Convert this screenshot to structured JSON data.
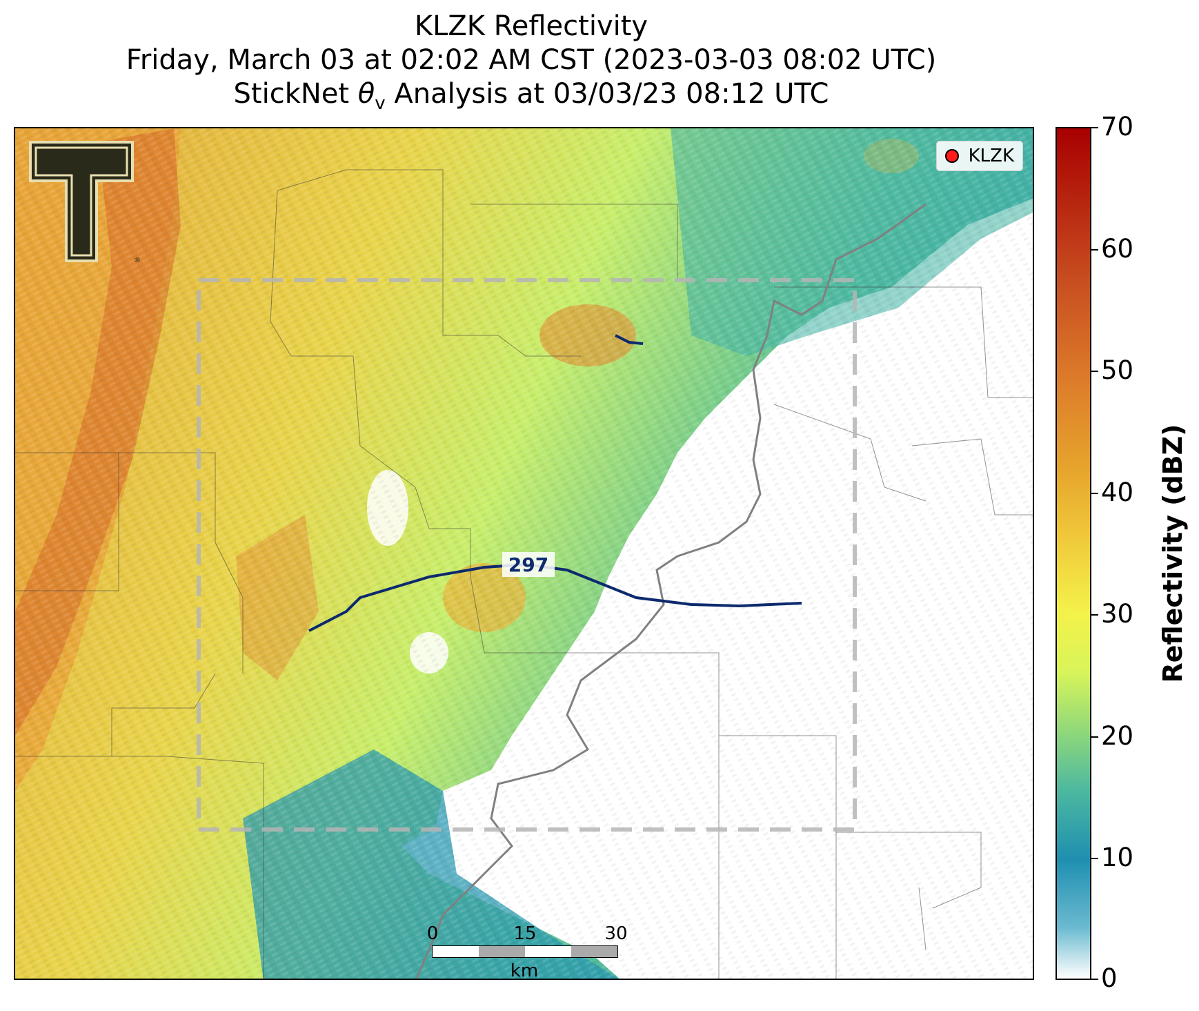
{
  "title": {
    "line1": "KLZK Reflectivity",
    "line2": "Friday, March 03 at 02:02 AM CST (2023-03-03 08:02 UTC)",
    "line3_prefix": "StickNet ",
    "line3_symbol": "θ",
    "line3_subscript": "v",
    "line3_suffix": " Analysis at 03/03/23 08:12 UTC"
  },
  "legend": {
    "label": "KLZK",
    "marker_color": "#ff1a1a"
  },
  "contour": {
    "label": "297",
    "color": "#0d2a6e"
  },
  "colorbar": {
    "title": "Reflectivity (dBZ)",
    "ticks": [
      "70",
      "60",
      "50",
      "40",
      "30",
      "20",
      "10",
      "0"
    ],
    "colors": [
      "#ffffff",
      "#1e8fb0",
      "#4cb8a0",
      "#c6f06e",
      "#f4f24a",
      "#e6b43c",
      "#d9682a",
      "#a80000"
    ]
  },
  "scalebar": {
    "labels": [
      "0",
      "15",
      "30"
    ],
    "unit": "km"
  },
  "logo": {
    "name": "Texas Tech Double T",
    "color": "#2a2a1a"
  }
}
